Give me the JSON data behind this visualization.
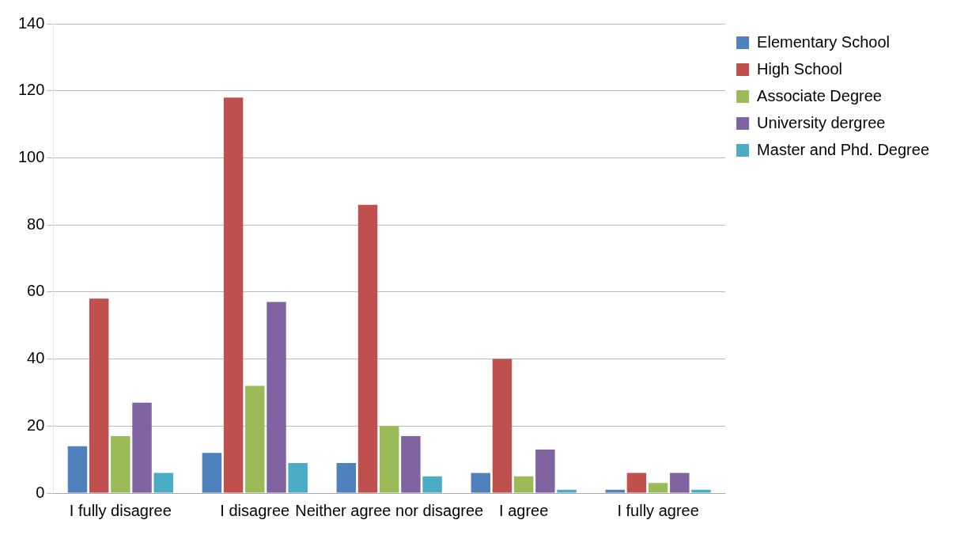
{
  "chart_data": {
    "type": "bar",
    "categories": [
      "I fully disagree",
      "I disagree",
      "Neither agree nor disagree",
      "I agree",
      "I fully agree"
    ],
    "series": [
      {
        "name": "Elementary School",
        "color": "#4f81bd",
        "values": [
          14,
          12,
          9,
          6,
          1
        ]
      },
      {
        "name": "High School",
        "color": "#c0504d",
        "values": [
          58,
          118,
          86,
          40,
          6
        ]
      },
      {
        "name": "Associate Degree",
        "color": "#9bbb59",
        "values": [
          17,
          32,
          20,
          5,
          3
        ]
      },
      {
        "name": "University dergree",
        "color": "#8064a2",
        "values": [
          27,
          57,
          17,
          13,
          6
        ]
      },
      {
        "name": "Master and Phd. Degree",
        "color": "#4bacc6",
        "values": [
          6,
          9,
          5,
          1,
          1
        ]
      }
    ],
    "ylim": [
      0,
      140
    ],
    "yticks": [
      0,
      20,
      40,
      60,
      80,
      100,
      120,
      140
    ],
    "grid": "y",
    "legend": "top right"
  }
}
